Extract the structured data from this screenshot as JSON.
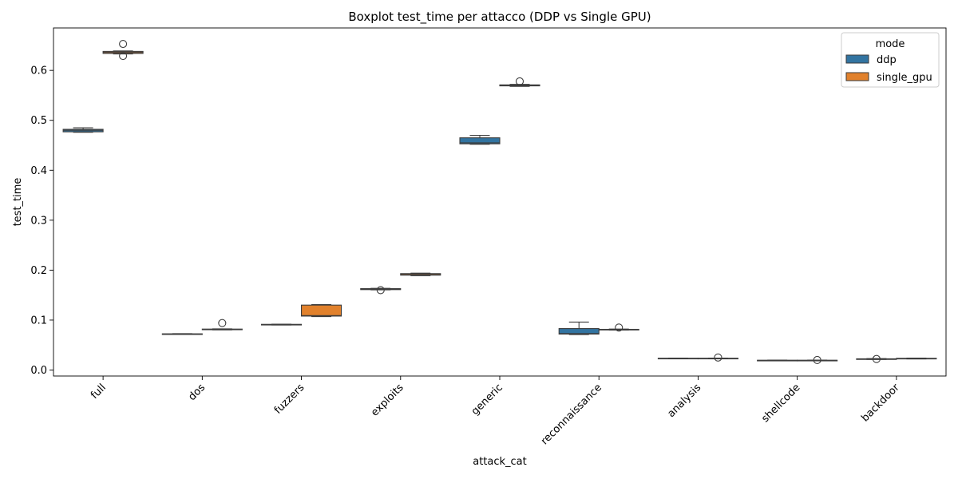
{
  "chart_data": {
    "type": "boxplot",
    "title": "Boxplot test_time per attacco (DDP vs Single GPU)",
    "xlabel": "attack_cat",
    "ylabel": "test_time",
    "ylim": [
      -0.012,
      0.685
    ],
    "y_ticks": [
      "0.0",
      "0.1",
      "0.2",
      "0.3",
      "0.4",
      "0.5",
      "0.6"
    ],
    "y_tick_values": [
      0.0,
      0.1,
      0.2,
      0.3,
      0.4,
      0.5,
      0.6
    ],
    "categories": [
      "full",
      "dos",
      "fuzzers",
      "exploits",
      "generic",
      "reconnaissance",
      "analysis",
      "shellcode",
      "backdoor"
    ],
    "legend": {
      "title": "mode",
      "position": "top-right"
    },
    "grid": false,
    "series": [
      {
        "name": "ddp",
        "color": "#3274a1",
        "boxes": [
          {
            "q1": 0.477,
            "median": 0.48,
            "q3": 0.482,
            "whislo": 0.476,
            "whishi": 0.485,
            "fliers": []
          },
          {
            "q1": 0.0715,
            "median": 0.072,
            "q3": 0.0725,
            "whislo": 0.0712,
            "whishi": 0.0728,
            "fliers": []
          },
          {
            "q1": 0.0905,
            "median": 0.091,
            "q3": 0.0915,
            "whislo": 0.0902,
            "whishi": 0.0918,
            "fliers": []
          },
          {
            "q1": 0.161,
            "median": 0.162,
            "q3": 0.163,
            "whislo": 0.1605,
            "whishi": 0.1635,
            "fliers": [
              0.16
            ]
          },
          {
            "q1": 0.453,
            "median": 0.455,
            "q3": 0.465,
            "whislo": 0.452,
            "whishi": 0.47,
            "fliers": []
          },
          {
            "q1": 0.072,
            "median": 0.073,
            "q3": 0.083,
            "whislo": 0.071,
            "whishi": 0.096,
            "fliers": []
          },
          {
            "q1": 0.0228,
            "median": 0.0232,
            "q3": 0.0236,
            "whislo": 0.0225,
            "whishi": 0.0238,
            "fliers": []
          },
          {
            "q1": 0.0188,
            "median": 0.0192,
            "q3": 0.0196,
            "whislo": 0.0185,
            "whishi": 0.0198,
            "fliers": []
          },
          {
            "q1": 0.0215,
            "median": 0.022,
            "q3": 0.0225,
            "whislo": 0.0212,
            "whishi": 0.0228,
            "fliers": [
              0.022
            ]
          }
        ]
      },
      {
        "name": "single_gpu",
        "color": "#e1812c",
        "boxes": [
          {
            "q1": 0.634,
            "median": 0.636,
            "q3": 0.638,
            "whislo": 0.633,
            "whishi": 0.639,
            "fliers": [
              0.653,
              0.629
            ]
          },
          {
            "q1": 0.081,
            "median": 0.0815,
            "q3": 0.082,
            "whislo": 0.0805,
            "whishi": 0.0825,
            "fliers": [
              0.094
            ]
          },
          {
            "q1": 0.108,
            "median": 0.109,
            "q3": 0.13,
            "whislo": 0.107,
            "whishi": 0.131,
            "fliers": []
          },
          {
            "q1": 0.19,
            "median": 0.191,
            "q3": 0.193,
            "whislo": 0.189,
            "whishi": 0.194,
            "fliers": []
          },
          {
            "q1": 0.569,
            "median": 0.57,
            "q3": 0.571,
            "whislo": 0.568,
            "whishi": 0.572,
            "fliers": [
              0.578
            ]
          },
          {
            "q1": 0.0805,
            "median": 0.081,
            "q3": 0.0815,
            "whislo": 0.08,
            "whishi": 0.082,
            "fliers": [
              0.085
            ]
          },
          {
            "q1": 0.0228,
            "median": 0.0232,
            "q3": 0.0236,
            "whislo": 0.0225,
            "whishi": 0.0238,
            "fliers": [
              0.025
            ]
          },
          {
            "q1": 0.0188,
            "median": 0.0192,
            "q3": 0.0196,
            "whislo": 0.0185,
            "whishi": 0.0198,
            "fliers": [
              0.02
            ]
          },
          {
            "q1": 0.0225,
            "median": 0.023,
            "q3": 0.0235,
            "whislo": 0.0222,
            "whishi": 0.0238,
            "fliers": []
          }
        ]
      }
    ]
  }
}
